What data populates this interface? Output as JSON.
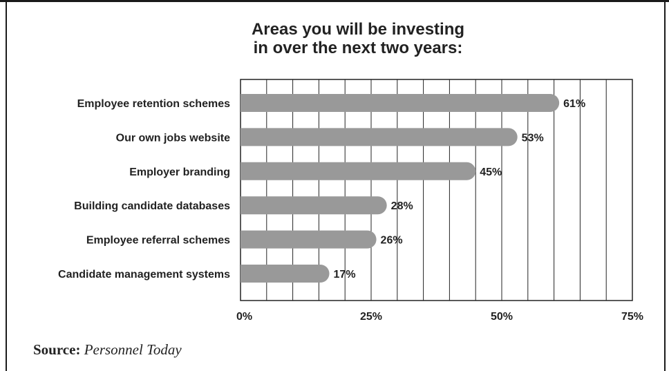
{
  "chart_data": {
    "type": "bar",
    "orientation": "horizontal",
    "title_lines": [
      "Areas you will be investing",
      "in over the next two years:"
    ],
    "categories": [
      "Employee retention schemes",
      "Our own jobs website",
      "Employer branding",
      "Building candidate databases",
      "Employee referral schemes",
      "Candidate management systems"
    ],
    "values": [
      61,
      53,
      45,
      28,
      26,
      17
    ],
    "value_labels": [
      "61%",
      "53%",
      "45%",
      "28%",
      "26%",
      "17%"
    ],
    "xlim": [
      0,
      75
    ],
    "x_tick_values": [
      0,
      25,
      50,
      75
    ],
    "x_tick_labels": [
      "0%",
      "25%",
      "50%",
      "75%"
    ],
    "grid": true,
    "grid_step": 5,
    "bar_color": "#999999"
  },
  "source": {
    "label": "Source:",
    "name": "Personnel Today"
  }
}
